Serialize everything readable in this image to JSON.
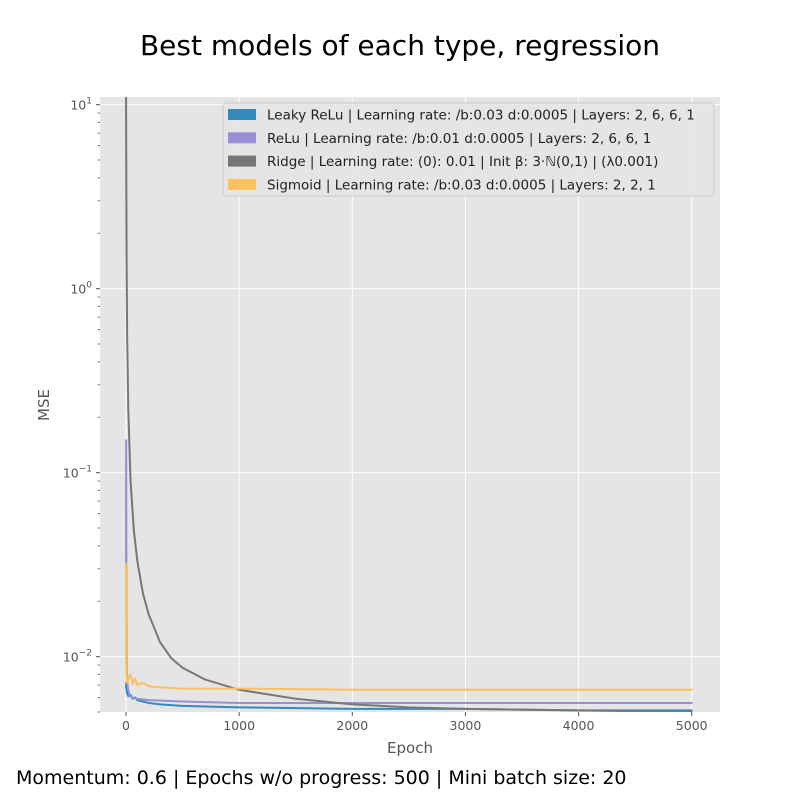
{
  "chart_data": {
    "type": "line",
    "title": "Best models of each type, regression",
    "footer": "Momentum: 0.6 | Epochs w/o progress: 500 | Mini batch size: 20",
    "xlabel": "Epoch",
    "ylabel": "MSE",
    "yscale": "log",
    "xlim": [
      -230,
      5250
    ],
    "ylim": [
      0.005,
      11
    ],
    "x_ticks": [
      0,
      1000,
      2000,
      3000,
      4000,
      5000
    ],
    "x_tick_labels": [
      "0",
      "1000",
      "2000",
      "3000",
      "4000",
      "5000"
    ],
    "y_ticks": [
      0.01,
      0.1,
      1,
      10
    ],
    "y_tick_labels": [
      {
        "base": "10",
        "exp": "−2"
      },
      {
        "base": "10",
        "exp": "−1"
      },
      {
        "base": "10",
        "exp": "0"
      },
      {
        "base": "10",
        "exp": "1"
      }
    ],
    "grid": true,
    "legend_position": "top-right",
    "colors": {
      "background": "#e5e5e5",
      "grid": "#ffffff"
    },
    "series": [
      {
        "name": "Leaky ReLu | Learning rate: /b:0.03 d:0.0005 | Layers: 2, 6, 6, 1",
        "color": "#348abd",
        "x": [
          0,
          2,
          5,
          10,
          20,
          40,
          60,
          80,
          100,
          150,
          200,
          300,
          500,
          1000,
          2000,
          3000,
          4000,
          5000
        ],
        "y": [
          0.0068,
          0.0072,
          0.0066,
          0.0063,
          0.0061,
          0.0062,
          0.0059,
          0.006,
          0.0058,
          0.0057,
          0.0056,
          0.0055,
          0.0054,
          0.0053,
          0.0052,
          0.0052,
          0.0051,
          0.0051
        ]
      },
      {
        "name": "ReLu | Learning rate: /b:0.01 d:0.0005 | Layers: 2, 6, 6, 1",
        "color": "#988ed5",
        "x": [
          0,
          1,
          2,
          4,
          8,
          15,
          30,
          50,
          100,
          200,
          500,
          1000,
          2000,
          3000,
          4000,
          5000
        ],
        "y": [
          0.03,
          0.15,
          0.08,
          0.02,
          0.0085,
          0.0068,
          0.0062,
          0.006,
          0.0059,
          0.0058,
          0.0057,
          0.0056,
          0.0056,
          0.0056,
          0.0056,
          0.0056
        ]
      },
      {
        "name": "Ridge | Learning rate: (0): 0.01 | Init $\\beta$: 3$\\cdot \\mathbb{N}(0, 1)$ | ($\\lambda$0.001)",
        "color": "#777777",
        "x": [
          0,
          2,
          5,
          10,
          20,
          40,
          70,
          100,
          150,
          200,
          300,
          400,
          500,
          700,
          1000,
          1500,
          2000,
          2500,
          3000,
          4000,
          5000
        ],
        "y": [
          12,
          5,
          1.5,
          0.55,
          0.22,
          0.09,
          0.048,
          0.033,
          0.022,
          0.017,
          0.012,
          0.0098,
          0.0087,
          0.0075,
          0.0066,
          0.0059,
          0.0055,
          0.0053,
          0.0052,
          0.0051,
          0.005
        ]
      },
      {
        "name": "Sigmoid | Learning rate: /b:0.03 d:0.0005 | Layers: 2, 2, 1",
        "color": "#fbc15e",
        "x": [
          0,
          1,
          3,
          6,
          10,
          20,
          40,
          60,
          80,
          100,
          150,
          200,
          300,
          500,
          1000,
          2000,
          3000,
          4000,
          5000
        ],
        "y": [
          0.009,
          0.032,
          0.012,
          0.0078,
          0.0072,
          0.0075,
          0.008,
          0.0071,
          0.0076,
          0.007,
          0.0072,
          0.0069,
          0.0068,
          0.0067,
          0.0067,
          0.0066,
          0.0066,
          0.0066,
          0.0066
        ]
      }
    ],
    "legend_items": [
      {
        "name": "Leaky ReLu | Learning rate: /b:0.03 d:0.0005 | Layers: 2, 6, 6, 1",
        "color": "#348abd"
      },
      {
        "name": "ReLu | Learning rate: /b:0.01 d:0.0005 | Layers: 2, 6, 6, 1",
        "color": "#988ed5"
      },
      {
        "name": "Ridge | Learning rate: (0): 0.01 | Init β: 3·ℕ(0,1) | (λ0.001)",
        "color": "#777777"
      },
      {
        "name": "Sigmoid | Learning rate: /b:0.03 d:0.0005 | Layers: 2, 2, 1",
        "color": "#fbc15e"
      }
    ]
  }
}
